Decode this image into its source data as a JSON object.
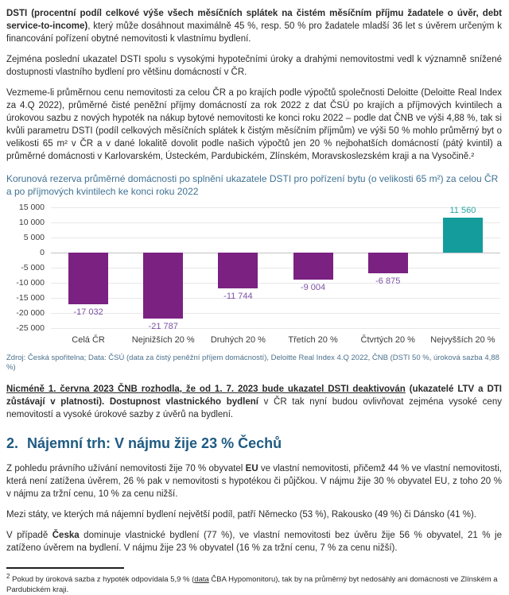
{
  "content": {
    "p1_bold": "DSTI (procentní podíl celkové výše všech měsíčních splátek na čistém měsíčním příjmu žadatele o úvěr, debt service-to-income)",
    "p1_rest": ", který může dosáhnout maximálně 45 %, resp. 50 % pro žadatele mladší 36 let s úvěrem určeným k financování pořízení obytné nemovitosti k vlastnímu bydlení.",
    "p2": "Zejména poslední ukazatel DSTI spolu s vysokými hypotečními úroky a drahými nemovitostmi vedl k významně snížené dostupnosti vlastního bydlení pro většinu domácností v ČR.",
    "p3": "Vezmeme-li průměrnou cenu nemovitosti za celou ČR a po krajích podle výpočtů společnosti Deloitte (Deloitte Real Index za 4.Q 2022), průměrné čisté peněžní příjmy domácností za rok 2022 z dat ČSÚ po krajích a příjmových kvintilech a úrokovou sazbu z nových hypoték na nákup bytové nemovitosti ke konci roku 2022 – podle dat ČNB ve výši 4,88 %, tak si kvůli parametru DSTI (podíl celkových měsíčních splátek k čistým měsíčním příjmům) ve výši 50 % mohlo průměrný byt o velikosti 65 m² v ČR a v dané lokalitě dovolit podle našich výpočtů jen 20 % nejbohatších domácností (pátý kvintil) a průměrné domácnosti v Karlovarském, Ústeckém, Pardubickém, Zlínském, Moravskoslezském kraji a na Vysočině.²",
    "chart_title": "Korunová rezerva průměrné domácnosti po splnění ukazatele DSTI pro pořízení bytu (o velikosti 65 m²) za celou ČR a po příjmových kvintilech ke konci roku 2022",
    "source": "Zdroj: Česká spořitelna; Data: ČSÚ (data za čistý peněžní příjem domácností), Deloitte Real Index 4.Q 2022, ČNB (DSTI 50 %, úroková sazba 4,88 %)",
    "p4_bold_underline": "Nicméně 1. června 2023 ČNB rozhodla, že od 1. 7. 2023 bude ukazatel DSTI deaktivován",
    "p4_bold": " (ukazatelé LTV a DTI zůstávají v platnosti). Dostupnost vlastnického bydlení",
    "p4_rest": " v ČR tak nyní budou ovlivňovat zejména vysoké ceny nemovitostí a vysoké úrokové sazby z úvěrů na bydlení.",
    "heading_number": "2.",
    "heading_text": "Nájemní trh: V nájmu žije 23 % Čechů",
    "p5_pre": "Z pohledu právního užívání nemovitosti žije 70 % obyvatel ",
    "p5_bold": "EU",
    "p5_rest": " ve vlastní nemovitosti, přičemž 44 % ve vlastní nemovitosti, která není zatížena úvěrem, 26 % pak v nemovitosti s hypotékou či půjčkou. V nájmu žije 30 % obyvatel EU, z toho 20 % v nájmu za tržní cenu, 10 % za cenu nižší.",
    "p6": "Mezi státy, ve kterých má nájemní bydlení největší podíl, patří Německo (53 %), Rakousko (49 %) či Dánsko (41 %).",
    "p7_pre": "V případě ",
    "p7_bold": "Česka",
    "p7_rest": " dominuje vlastnické bydlení (77 %), ve vlastní nemovitosti bez úvěru žije 56 % obyvatel, 21 % je zatíženo úvěrem na bydlení. V nájmu žije 23 % obyvatel (16 % za tržní cenu, 7 % za cenu nižší).",
    "footnote_marker": "2",
    "footnote_pre": " Pokud by úroková sazba z hypoték odpovídala 5,9 % (",
    "footnote_link": "data",
    "footnote_post": " ČBA Hypomonitoru), tak by na průměrný byt nedosáhly ani domácnosti ve Zlínském a Pardubickém kraji."
  },
  "chart_data": {
    "type": "bar",
    "title": "Korunová rezerva průměrné domácnosti po splnění ukazatele DSTI pro pořízení bytu (o velikosti 65 m²) za celou ČR a po příjmových kvintilech ke konci roku 2022",
    "categories": [
      "Celá ČR",
      "Nejnižších 20 %",
      "Druhých 20 %",
      "Třetích 20 %",
      "Čtvrtých 20 %",
      "Nejvyšších 20 %"
    ],
    "values": [
      -17032,
      -21787,
      -11744,
      -9004,
      -6875,
      11560
    ],
    "value_labels": [
      "-17 032",
      "-21 787",
      "-11 744",
      "-9 004",
      "-6 875",
      "11 560"
    ],
    "xlabel": "",
    "ylabel": "",
    "ylim": [
      -25000,
      15000
    ],
    "ytick_step": 5000,
    "ytick_labels": [
      "15 000",
      "10 000",
      "5 000",
      "0",
      "-5 000",
      "-10 000",
      "-15 000",
      "-20 000",
      "-25 000"
    ],
    "grid": true,
    "legend_position": "none",
    "colors": {
      "bar_negative": "#7A2182",
      "bar_positive": "#149C9C",
      "label_negative": "#7B51A4",
      "label_positive": "#2AA5A5"
    }
  },
  "colors": {
    "heading": "#1e5a82",
    "chart_title": "#3f7294",
    "source_text": "#4a708c",
    "body_text": "#2a2a2a"
  }
}
